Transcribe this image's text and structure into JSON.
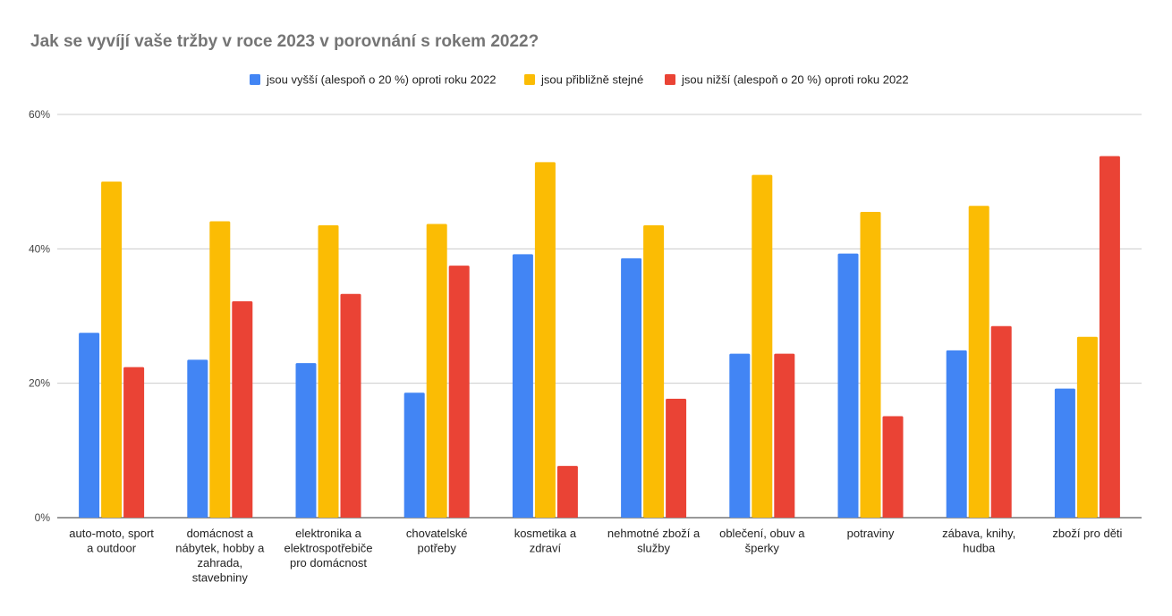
{
  "chart_data": {
    "type": "bar",
    "title": "Jak se vyvíjí vaše tržby v roce 2023 v porovnání s rokem 2022?",
    "xlabel": "",
    "ylabel": "",
    "ylim": [
      0,
      60
    ],
    "yticks": [
      0,
      20,
      40,
      60
    ],
    "ytick_labels": [
      "0%",
      "20%",
      "40%",
      "60%"
    ],
    "grid": true,
    "legend_position": "top",
    "categories": [
      [
        "auto-moto, sport",
        "a outdoor"
      ],
      [
        "domácnost a",
        "nábytek, hobby a",
        "zahrada,",
        "stavebniny"
      ],
      [
        "elektronika a",
        "elektrospotřebiče",
        "pro domácnost"
      ],
      [
        "chovatelské",
        "potřeby"
      ],
      [
        "kosmetika a",
        "zdraví"
      ],
      [
        "nehmotné zboží a",
        "služby"
      ],
      [
        "oblečení, obuv a",
        "šperky"
      ],
      [
        "potraviny"
      ],
      [
        "zábava, knihy,",
        "hudba"
      ],
      [
        "zboží pro děti"
      ]
    ],
    "series": [
      {
        "name": "jsou vyšší (alespoň o 20 %) oproti roku 2022",
        "color": "#4285F4",
        "values": [
          27.5,
          23.5,
          23.0,
          18.6,
          39.2,
          38.6,
          24.4,
          39.3,
          24.9,
          19.2
        ]
      },
      {
        "name": "jsou přibližně stejné",
        "color": "#FBBC04",
        "values": [
          50.0,
          44.1,
          43.5,
          43.7,
          52.9,
          43.5,
          51.0,
          45.5,
          46.4,
          26.9
        ]
      },
      {
        "name": "jsou nižší (alespoň o 20 %) oproti roku 2022",
        "color": "#EA4335",
        "values": [
          22.4,
          32.2,
          33.3,
          37.5,
          7.7,
          17.7,
          24.4,
          15.1,
          28.5,
          53.8
        ]
      }
    ]
  }
}
